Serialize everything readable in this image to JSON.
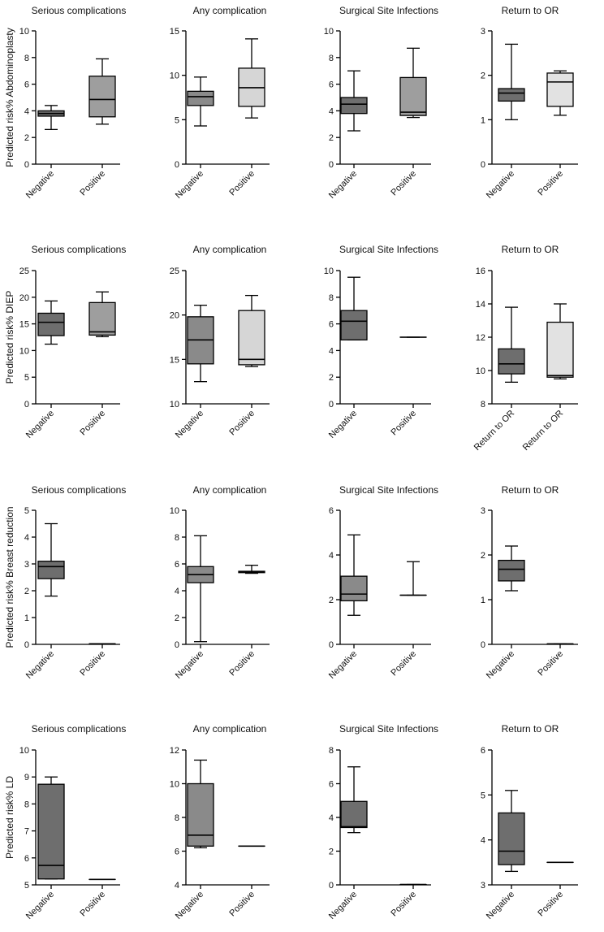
{
  "chart_data": [
    {
      "type": "box",
      "title": "Serious complications",
      "ylabel": "Predicted risk% Abdominoplasty",
      "ylim": [
        0,
        10
      ],
      "yticks": [
        0,
        2,
        4,
        6,
        8,
        10
      ],
      "categories": [
        "Negative",
        "Positive"
      ],
      "boxes": [
        {
          "min": 2.6,
          "q1": 3.6,
          "median": 3.8,
          "q3": 4.0,
          "max": 4.4,
          "color": "#6e6e6e"
        },
        {
          "min": 3.0,
          "q1": 3.55,
          "median": 4.85,
          "q3": 6.6,
          "max": 7.9,
          "color": "#9e9e9e"
        }
      ]
    },
    {
      "type": "box",
      "title": "Any complication",
      "ylabel": "",
      "ylim": [
        0,
        15
      ],
      "yticks": [
        0,
        5,
        10,
        15
      ],
      "categories": [
        "Negative",
        "Positive"
      ],
      "boxes": [
        {
          "min": 4.3,
          "q1": 6.6,
          "median": 7.6,
          "q3": 8.2,
          "max": 9.8,
          "color": "#8a8a8a"
        },
        {
          "min": 5.2,
          "q1": 6.5,
          "median": 8.6,
          "q3": 10.8,
          "max": 14.1,
          "color": "#d6d6d6"
        }
      ]
    },
    {
      "type": "box",
      "title": "Surgical Site Infections",
      "ylabel": "",
      "ylim": [
        0,
        10
      ],
      "yticks": [
        0,
        2,
        4,
        6,
        8,
        10
      ],
      "categories": [
        "Negative",
        "Positive"
      ],
      "boxes": [
        {
          "min": 2.5,
          "q1": 3.8,
          "median": 4.5,
          "q3": 5.0,
          "max": 7.0,
          "color": "#6e6e6e"
        },
        {
          "min": 3.5,
          "q1": 3.65,
          "median": 3.9,
          "q3": 6.5,
          "max": 8.7,
          "color": "#9e9e9e"
        }
      ]
    },
    {
      "type": "box",
      "title": "Return to OR",
      "ylabel": "",
      "ylim": [
        0,
        3
      ],
      "yticks": [
        0,
        1,
        2,
        3
      ],
      "categories": [
        "Negative",
        "Positive"
      ],
      "boxes": [
        {
          "min": 1.0,
          "q1": 1.42,
          "median": 1.6,
          "q3": 1.7,
          "max": 2.7,
          "color": "#6e6e6e"
        },
        {
          "min": 1.1,
          "q1": 1.3,
          "median": 1.85,
          "q3": 2.05,
          "max": 2.1,
          "color": "#e2e2e2"
        }
      ]
    },
    {
      "type": "box",
      "title": "Serious complications",
      "ylabel": "Predicted risk% DIEP",
      "ylim": [
        0,
        25
      ],
      "yticks": [
        0,
        5,
        10,
        15,
        20,
        25
      ],
      "categories": [
        "Negative",
        "Positive"
      ],
      "boxes": [
        {
          "min": 11.2,
          "q1": 12.8,
          "median": 15.3,
          "q3": 17.0,
          "max": 19.3,
          "color": "#6e6e6e"
        },
        {
          "min": 12.6,
          "q1": 12.9,
          "median": 13.5,
          "q3": 19.0,
          "max": 21.0,
          "color": "#9e9e9e"
        }
      ]
    },
    {
      "type": "box",
      "title": "Any complication",
      "ylabel": "",
      "ylim": [
        10,
        25
      ],
      "yticks": [
        10,
        15,
        20,
        25
      ],
      "categories": [
        "Negative",
        "Positive"
      ],
      "boxes": [
        {
          "min": 12.5,
          "q1": 14.5,
          "median": 17.2,
          "q3": 19.8,
          "max": 21.1,
          "color": "#8a8a8a"
        },
        {
          "min": 14.2,
          "q1": 14.4,
          "median": 15.0,
          "q3": 20.5,
          "max": 22.2,
          "color": "#d6d6d6"
        }
      ]
    },
    {
      "type": "box",
      "title": "Surgical Site Infections",
      "ylabel": "",
      "ylim": [
        0,
        10
      ],
      "yticks": [
        0,
        2,
        4,
        6,
        8,
        10
      ],
      "categories": [
        "Negative",
        "Positive"
      ],
      "boxes": [
        {
          "min": 4.8,
          "q1": 4.8,
          "median": 6.2,
          "q3": 7.0,
          "max": 9.5,
          "color": "#6e6e6e"
        },
        {
          "min": 5.0,
          "q1": 5.0,
          "median": 5.0,
          "q3": 5.0,
          "max": 5.0,
          "color": "#9e9e9e"
        }
      ]
    },
    {
      "type": "box",
      "title": "Return to OR",
      "ylabel": "",
      "ylim": [
        8,
        16
      ],
      "yticks": [
        8,
        10,
        12,
        14,
        16
      ],
      "categories": [
        "Return to OR",
        "Return to OR"
      ],
      "boxes": [
        {
          "min": 9.3,
          "q1": 9.8,
          "median": 10.4,
          "q3": 11.3,
          "max": 13.8,
          "color": "#6e6e6e"
        },
        {
          "min": 9.5,
          "q1": 9.6,
          "median": 9.7,
          "q3": 12.9,
          "max": 14.0,
          "color": "#e2e2e2"
        }
      ]
    },
    {
      "type": "box",
      "title": "Serious complications",
      "ylabel": "Predicted risk% Breast reduction",
      "ylim": [
        0,
        5
      ],
      "yticks": [
        0,
        1,
        2,
        3,
        4,
        5
      ],
      "categories": [
        "Negative",
        "Positive"
      ],
      "boxes": [
        {
          "min": 1.8,
          "q1": 2.45,
          "median": 2.9,
          "q3": 3.1,
          "max": 4.5,
          "color": "#6e6e6e"
        },
        {
          "min": 0.02,
          "q1": 0.02,
          "median": 0.02,
          "q3": 0.02,
          "max": 0.02,
          "color": "#9e9e9e"
        }
      ]
    },
    {
      "type": "box",
      "title": "Any complication",
      "ylabel": "",
      "ylim": [
        0,
        10
      ],
      "yticks": [
        0,
        2,
        4,
        6,
        8,
        10
      ],
      "categories": [
        "Negative",
        "Positive"
      ],
      "boxes": [
        {
          "min": 0.2,
          "q1": 4.6,
          "median": 5.2,
          "q3": 5.8,
          "max": 8.1,
          "color": "#8a8a8a"
        },
        {
          "min": 5.3,
          "q1": 5.35,
          "median": 5.4,
          "q3": 5.45,
          "max": 5.9,
          "color": "#d6d6d6"
        }
      ]
    },
    {
      "type": "box",
      "title": "Surgical Site Infections",
      "ylabel": "",
      "ylim": [
        0,
        6
      ],
      "yticks": [
        0,
        2,
        4,
        6
      ],
      "categories": [
        "Negative",
        "Positive"
      ],
      "boxes": [
        {
          "min": 1.3,
          "q1": 1.95,
          "median": 2.25,
          "q3": 3.05,
          "max": 4.9,
          "color": "#8a8a8a"
        },
        {
          "min": 2.2,
          "q1": 2.2,
          "median": 2.2,
          "q3": 2.2,
          "max": 3.7,
          "color": "#9e9e9e"
        }
      ]
    },
    {
      "type": "box",
      "title": "Return to OR",
      "ylabel": "",
      "ylim": [
        0,
        3
      ],
      "yticks": [
        0,
        1,
        2,
        3
      ],
      "categories": [
        "Negative",
        "Positive"
      ],
      "boxes": [
        {
          "min": 1.2,
          "q1": 1.42,
          "median": 1.68,
          "q3": 1.88,
          "max": 2.2,
          "color": "#6e6e6e"
        },
        {
          "min": 0.01,
          "q1": 0.01,
          "median": 0.01,
          "q3": 0.01,
          "max": 0.01,
          "color": "#e2e2e2"
        }
      ]
    },
    {
      "type": "box",
      "title": "Serious complications",
      "ylabel": "Predicted risk% LD",
      "ylim": [
        5,
        10
      ],
      "yticks": [
        5,
        6,
        7,
        8,
        9,
        10
      ],
      "categories": [
        "Negative",
        "Positive"
      ],
      "boxes": [
        {
          "min": 5.22,
          "q1": 5.22,
          "median": 5.72,
          "q3": 8.73,
          "max": 9.0,
          "color": "#6e6e6e"
        },
        {
          "min": 5.2,
          "q1": 5.2,
          "median": 5.2,
          "q3": 5.2,
          "max": 5.2,
          "color": "#9e9e9e"
        }
      ]
    },
    {
      "type": "box",
      "title": "Any complication",
      "ylabel": "",
      "ylim": [
        4,
        12
      ],
      "yticks": [
        4,
        6,
        8,
        10,
        12
      ],
      "categories": [
        "Negative",
        "Positive"
      ],
      "boxes": [
        {
          "min": 6.2,
          "q1": 6.3,
          "median": 6.95,
          "q3": 10.0,
          "max": 11.4,
          "color": "#8a8a8a"
        },
        {
          "min": 6.3,
          "q1": 6.3,
          "median": 6.3,
          "q3": 6.3,
          "max": 6.3,
          "color": "#d6d6d6"
        }
      ]
    },
    {
      "type": "box",
      "title": "Surgical Site Infections",
      "ylabel": "",
      "ylim": [
        0,
        8
      ],
      "yticks": [
        0,
        2,
        4,
        6,
        8
      ],
      "categories": [
        "Negative",
        "Positive"
      ],
      "boxes": [
        {
          "min": 3.1,
          "q1": 3.4,
          "median": 3.45,
          "q3": 4.95,
          "max": 7.0,
          "color": "#6e6e6e"
        },
        {
          "min": 0.02,
          "q1": 0.02,
          "median": 0.02,
          "q3": 0.02,
          "max": 0.02,
          "color": "#9e9e9e"
        }
      ]
    },
    {
      "type": "box",
      "title": "Return to OR",
      "ylabel": "",
      "ylim": [
        3,
        6
      ],
      "yticks": [
        3,
        4,
        5,
        6
      ],
      "categories": [
        "Negative",
        "Positive"
      ],
      "boxes": [
        {
          "min": 3.3,
          "q1": 3.45,
          "median": 3.75,
          "q3": 4.6,
          "max": 5.1,
          "color": "#6e6e6e"
        },
        {
          "min": 3.5,
          "q1": 3.5,
          "median": 3.5,
          "q3": 3.5,
          "max": 3.5,
          "color": "#e2e2e2"
        }
      ]
    }
  ]
}
